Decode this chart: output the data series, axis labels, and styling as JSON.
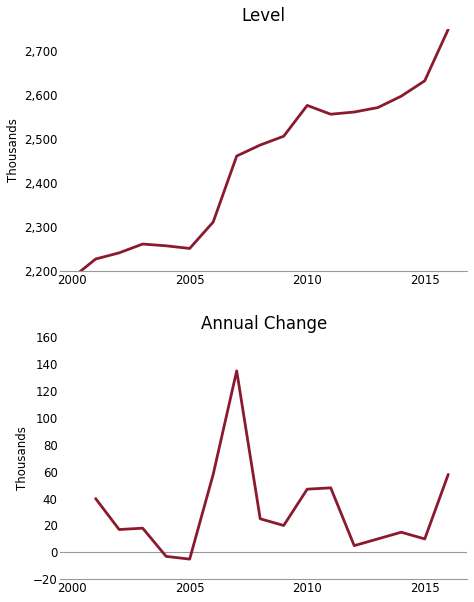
{
  "title1": "Level",
  "title2": "Annual Change",
  "ylabel": "Thousands",
  "line_color": "#8B1A2E",
  "line_width": 2.0,
  "level_years": [
    2000,
    2001,
    2002,
    2003,
    2004,
    2005,
    2006,
    2007,
    2008,
    2009,
    2010,
    2011,
    2012,
    2013,
    2014,
    2015,
    2016
  ],
  "level_values": [
    2185,
    2228,
    2242,
    2262,
    2258,
    2252,
    2312,
    2462,
    2487,
    2507,
    2577,
    2557,
    2562,
    2572,
    2598,
    2633,
    2750
  ],
  "change_years": [
    2001,
    2002,
    2003,
    2004,
    2005,
    2006,
    2007,
    2008,
    2009,
    2010,
    2011,
    2012,
    2013,
    2014,
    2015,
    2016
  ],
  "change_values": [
    40,
    17,
    18,
    -3,
    -5,
    58,
    135,
    25,
    20,
    47,
    48,
    5,
    10,
    15,
    10,
    58
  ],
  "level_ylim": [
    2200,
    2750
  ],
  "level_yticks": [
    2200,
    2300,
    2400,
    2500,
    2600,
    2700
  ],
  "change_ylim": [
    -20,
    160
  ],
  "change_yticks": [
    -20,
    0,
    20,
    40,
    60,
    80,
    100,
    120,
    140,
    160
  ],
  "xlim": [
    1999.5,
    2016.8
  ],
  "xticks": [
    2000,
    2005,
    2010,
    2015
  ],
  "bg_color": "#ffffff",
  "spine_color": "#999999"
}
